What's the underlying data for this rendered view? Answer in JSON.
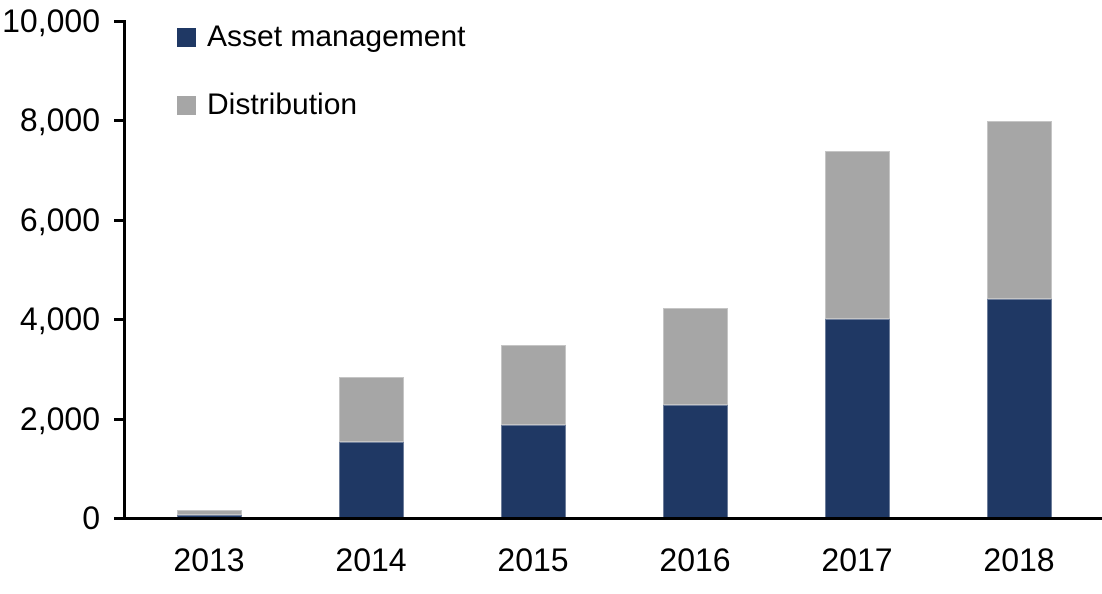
{
  "chart_data": {
    "type": "bar",
    "stacked": true,
    "title": "",
    "categories": [
      "2013",
      "2014",
      "2015",
      "2016",
      "2017",
      "2018"
    ],
    "series": [
      {
        "name": "Asset management",
        "color": "#1f3864",
        "values": [
          80,
          1550,
          1890,
          2290,
          4030,
          4430
        ]
      },
      {
        "name": "Distribution",
        "color": "#a6a6a6",
        "values": [
          110,
          1310,
          1620,
          1960,
          3370,
          3570
        ]
      }
    ],
    "xlabel": "",
    "ylabel": "",
    "ylim": [
      0,
      10000
    ],
    "ytick_values": [
      0,
      2000,
      4000,
      6000,
      8000,
      10000
    ],
    "ytick_labels": [
      "0",
      "2,000",
      "4,000",
      "6,000",
      "8,000",
      "10,000"
    ],
    "legend_position": "top-left",
    "grid": false,
    "axis_color": "#000000",
    "background_color": "#ffffff"
  }
}
